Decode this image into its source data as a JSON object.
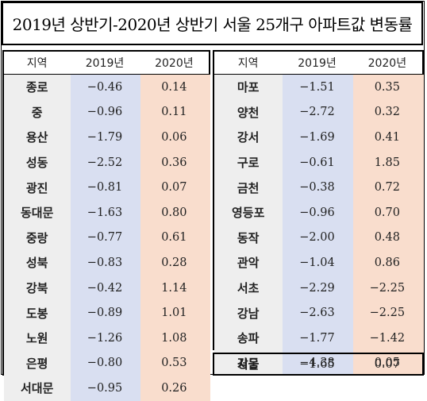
{
  "title": "2019년 상반기-2020년 상반기 서울 25개구 아파트값 변동률",
  "headers": {
    "region": "지역",
    "y2019": "2019년",
    "y2020": "2020년"
  },
  "left_rows": [
    {
      "region": "종로",
      "y2019": "−0.46",
      "y2020": "0.14"
    },
    {
      "region": "중",
      "y2019": "−0.96",
      "y2020": "0.11"
    },
    {
      "region": "용산",
      "y2019": "−1.79",
      "y2020": "0.06"
    },
    {
      "region": "성동",
      "y2019": "−2.52",
      "y2020": "0.36"
    },
    {
      "region": "광진",
      "y2019": "−0.81",
      "y2020": "0.07"
    },
    {
      "region": "동대문",
      "y2019": "−1.63",
      "y2020": "0.80"
    },
    {
      "region": "중랑",
      "y2019": "−0.77",
      "y2020": "0.61"
    },
    {
      "region": "성북",
      "y2019": "−0.83",
      "y2020": "0.28"
    },
    {
      "region": "강북",
      "y2019": "−0.42",
      "y2020": "1.14"
    },
    {
      "region": "도봉",
      "y2019": "−0.89",
      "y2020": "1.01"
    },
    {
      "region": "노원",
      "y2019": "−1.26",
      "y2020": "1.08"
    },
    {
      "region": "은평",
      "y2019": "−0.80",
      "y2020": "0.53"
    },
    {
      "region": "서대문",
      "y2019": "−0.95",
      "y2020": "0.26"
    }
  ],
  "right_rows": [
    {
      "region": "마포",
      "y2019": "−1.51",
      "y2020": "0.35"
    },
    {
      "region": "양천",
      "y2019": "−2.72",
      "y2020": "0.32"
    },
    {
      "region": "강서",
      "y2019": "−1.69",
      "y2020": "0.41"
    },
    {
      "region": "구로",
      "y2019": "−0.61",
      "y2020": "1.85"
    },
    {
      "region": "금천",
      "y2019": "−0.38",
      "y2020": "0.72"
    },
    {
      "region": "영등포",
      "y2019": "−0.96",
      "y2020": "0.70"
    },
    {
      "region": "동작",
      "y2019": "−2.00",
      "y2020": "0.48"
    },
    {
      "region": "관악",
      "y2019": "−1.04",
      "y2020": "0.86"
    },
    {
      "region": "서초",
      "y2019": "−2.29",
      "y2020": "−2.25"
    },
    {
      "region": "강남",
      "y2019": "−2.63",
      "y2020": "−2.25"
    },
    {
      "region": "송파",
      "y2019": "−1.77",
      "y2020": "−1.42"
    },
    {
      "region": "강동",
      "y2019": "−4.38",
      "y2020": "0.05"
    }
  ],
  "total_row": {
    "region": "서울",
    "y2019": "−1.65",
    "y2020": "0.07"
  },
  "colors": {
    "region_bg": "#eeeeee",
    "y2019_bg": "#d9dff1",
    "y2020_bg": "#f9ddcd"
  }
}
